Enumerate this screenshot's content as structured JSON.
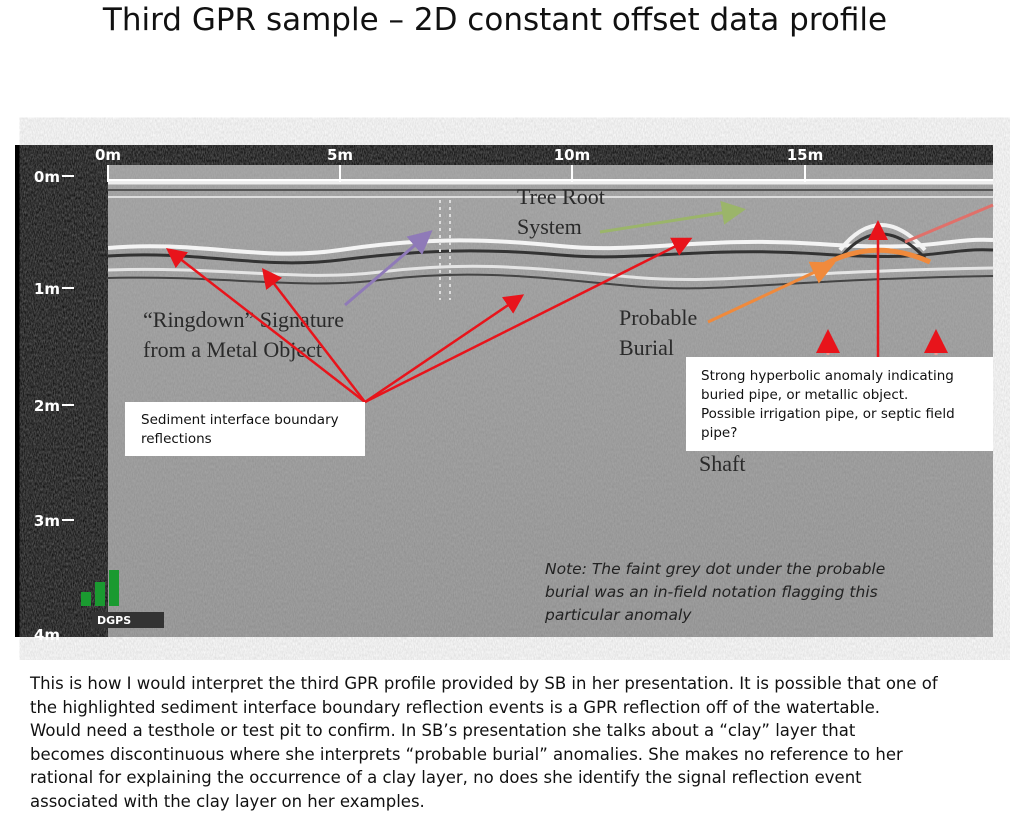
{
  "header": {
    "title": "Third GPR sample – 2D constant offset data profile"
  },
  "figure": {
    "x_labels": [
      "0m",
      "5m",
      "10m",
      "15m"
    ],
    "y_labels": [
      "0m",
      "1m",
      "2m",
      "3m",
      "4m"
    ],
    "annotations": {
      "tree_root": [
        "Tree Root",
        "System"
      ],
      "ringdown": [
        "“Ringdown” Signature",
        "from a Metal Object"
      ],
      "burial": [
        "Probable",
        "Burial"
      ],
      "shaft": "Shaft"
    },
    "note": [
      "Note: The faint grey dot under the probable",
      "burial was an in-field notation flagging this",
      "particular anomaly"
    ],
    "badge": "DGPS",
    "callouts": {
      "sediment": [
        "Sediment interface boundary",
        "reflections"
      ],
      "hyperbolic": [
        "Strong hyperbolic anomaly indicating",
        "buried pipe, or metallic object.",
        "Possible irrigation pipe, or septic field",
        "pipe?"
      ]
    }
  },
  "body": {
    "paragraph": [
      "This is how I would interpret the third GPR profile provided by SB in her presentation.  It is possible that one of",
      "the highlighted sediment interface boundary reflection events is a GPR reflection off of the watertable.",
      "Would need a testhole or test pit to confirm.  In SB’s presentation she talks about a “clay” layer that",
      "becomes discontinuous where she interprets “probable burial” anomalies.  She makes no reference to her",
      "rational for explaining the occurrence of a clay layer, no does she identify the signal reflection event",
      "associated with the clay layer on her examples."
    ]
  }
}
